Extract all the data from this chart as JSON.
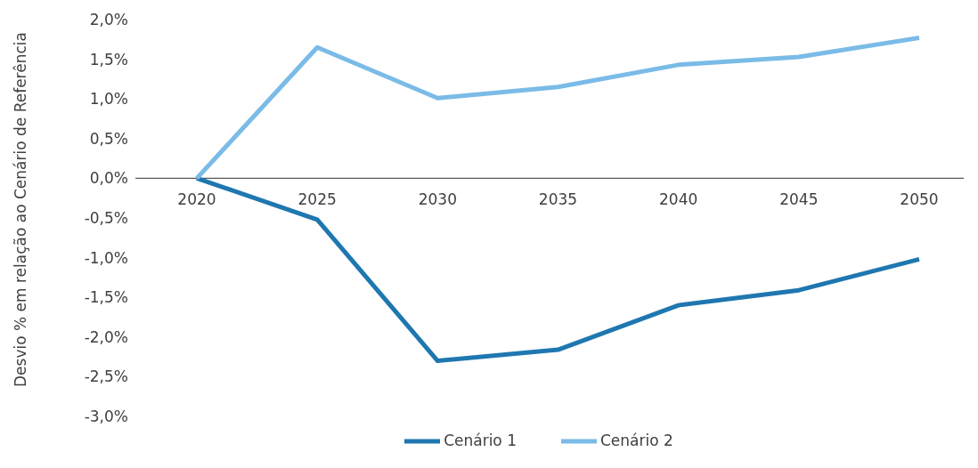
{
  "chart_data": {
    "type": "line",
    "ylabel": "Desvio % em relação ao Cenário de Referência",
    "categories": [
      "2020",
      "2025",
      "2030",
      "2035",
      "2040",
      "2045",
      "2050"
    ],
    "series": [
      {
        "name": "Cenário 1",
        "color": "#1f77b0",
        "values": [
          0,
          -0.52,
          -2.3,
          -2.16,
          -1.6,
          -1.41,
          -1.02
        ]
      },
      {
        "name": "Cenário 2",
        "color": "#7abbe7",
        "values": [
          0,
          1.65,
          1.01,
          1.15,
          1.43,
          1.53,
          1.77
        ]
      }
    ],
    "ylim": [
      -3,
      2
    ],
    "yticks": [
      {
        "value": -3,
        "label": "-3,0%"
      },
      {
        "value": -2.5,
        "label": "-2,5%"
      },
      {
        "value": -2,
        "label": "-2,0%"
      },
      {
        "value": -1.5,
        "label": "-1,5%"
      },
      {
        "value": -1,
        "label": "-1,0%"
      },
      {
        "value": -0.5,
        "label": "-0,5%"
      },
      {
        "value": 0,
        "label": "0,0%"
      },
      {
        "value": 0.5,
        "label": "0,5%"
      },
      {
        "value": 1,
        "label": "1,0%"
      },
      {
        "value": 1.5,
        "label": "1,5%"
      },
      {
        "value": 2,
        "label": "2,0%"
      }
    ],
    "grid": false,
    "legend": "bottom",
    "marker": "none",
    "line_style": "solid"
  }
}
